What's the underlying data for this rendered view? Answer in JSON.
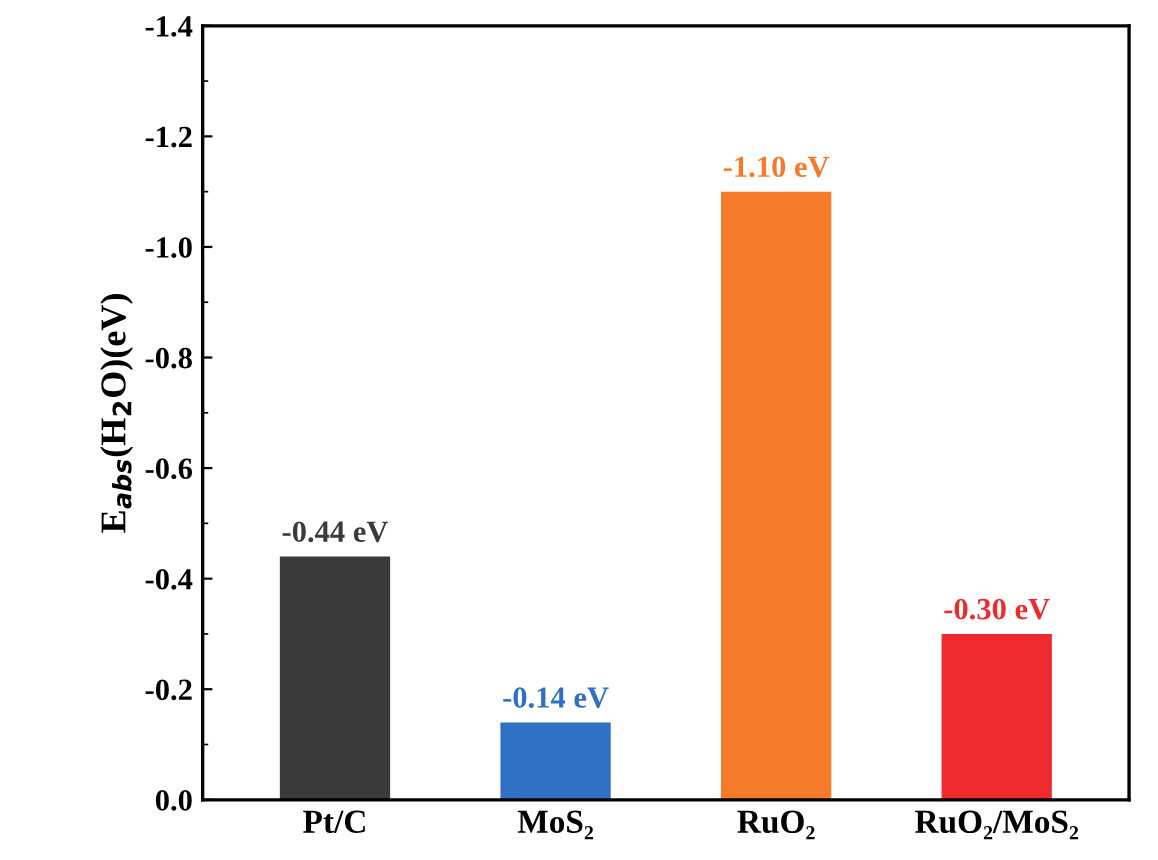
{
  "chart_data": {
    "type": "bar",
    "ylabel": "E$_{abs}$(H$_{2}$O)(eV)",
    "categories": [
      "Pt/C",
      "MoS₂",
      "RuO₂",
      "RuO₂/MoS₂"
    ],
    "values": [
      -0.44,
      -0.14,
      -1.1,
      -0.3
    ],
    "colors": [
      "#3a3a3a",
      "#2f6fc4",
      "#f57a2a",
      "#ee2a2e"
    ],
    "value_labels": [
      "-0.44 eV",
      "-0.14 eV",
      "-1.10 eV",
      "-0.30 eV"
    ],
    "ylim": [
      0,
      -1.4
    ],
    "yticks": [
      {
        "value": 0,
        "label": "0.0"
      },
      -0.2,
      -0.4,
      -0.6,
      -0.8,
      {
        "value": -1,
        "label": "-1.0"
      },
      -1.2,
      -1.4
    ],
    "grid": false
  }
}
